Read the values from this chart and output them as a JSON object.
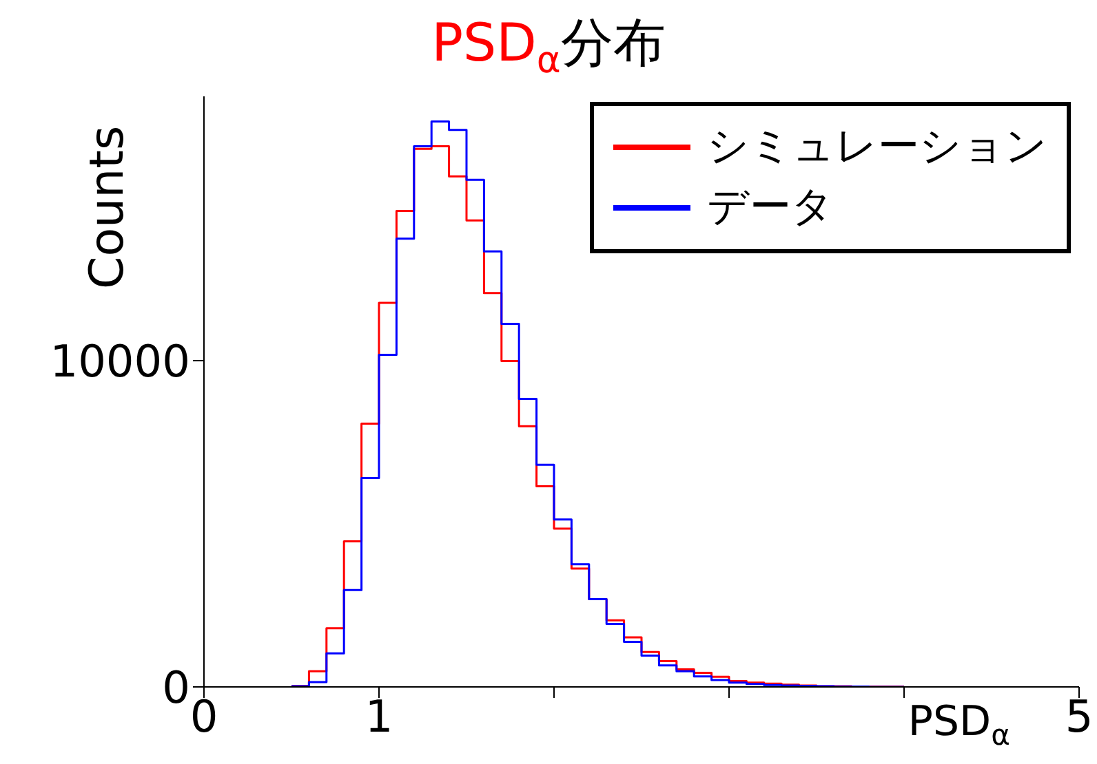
{
  "chart_data": {
    "type": "histogram",
    "title": "PSD$_{α}$分布",
    "xlabel": "PSD$_{α}$",
    "ylabel": "Counts",
    "bins": [
      0.5,
      0.6,
      0.7,
      0.8,
      0.9,
      1.0,
      1.1,
      1.2,
      1.3,
      1.4,
      1.5,
      1.6,
      1.7,
      1.8,
      1.9,
      2.0,
      2.1,
      2.2,
      2.3,
      2.4,
      2.5,
      2.6,
      2.7,
      2.8,
      2.9,
      3.0,
      3.1,
      3.2,
      3.3,
      3.4,
      3.5,
      3.6,
      3.7,
      3.8,
      3.9,
      4.0
    ],
    "series": [
      {
        "name": "シミュレーション",
        "color": "#ff0000",
        "values": [
          30,
          480,
          1800,
          4460,
          8070,
          11770,
          14590,
          16490,
          16570,
          15650,
          14300,
          12070,
          9990,
          7990,
          6150,
          4850,
          3630,
          2690,
          2040,
          1520,
          1070,
          790,
          540,
          430,
          310,
          180,
          130,
          100,
          70,
          40,
          20,
          20,
          10,
          10,
          10
        ]
      },
      {
        "name": "データ",
        "color": "#0000ff",
        "values": [
          20,
          150,
          1030,
          2970,
          6400,
          10180,
          13740,
          16570,
          17330,
          17070,
          15540,
          13350,
          11130,
          8830,
          6810,
          5130,
          3760,
          2690,
          1930,
          1380,
          960,
          660,
          480,
          320,
          210,
          130,
          90,
          60,
          40,
          30,
          20,
          10,
          10,
          0,
          0
        ]
      }
    ],
    "xlim": [
      0,
      5
    ],
    "xticks": [
      0,
      1,
      {
        "value": 2,
        "label": null
      },
      {
        "value": 3,
        "label": null
      },
      {
        "value": 4,
        "label": null
      },
      5
    ],
    "ylim": [
      0,
      18100
    ],
    "yticks": [
      0,
      10000
    ],
    "legend": "top right",
    "grid": false
  }
}
